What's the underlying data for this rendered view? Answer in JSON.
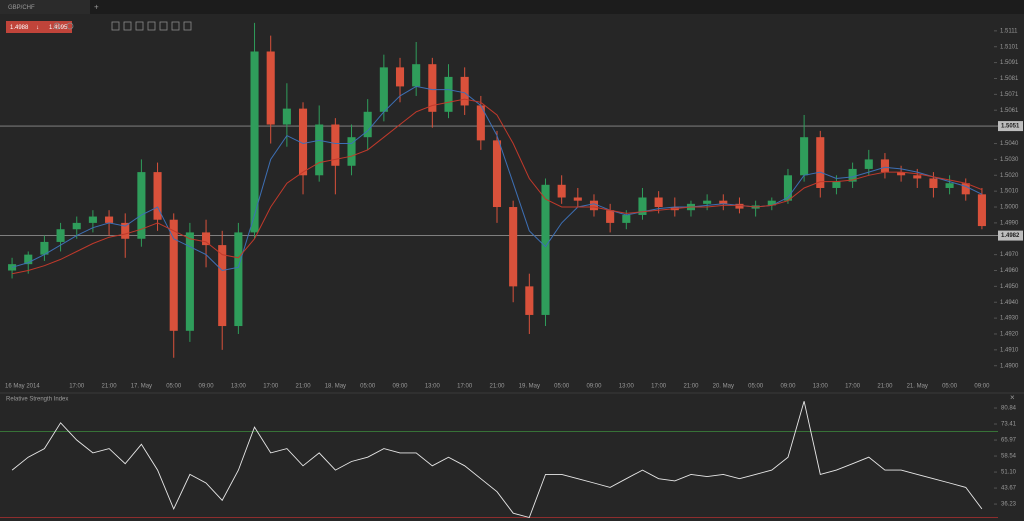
{
  "chart_data": [
    {
      "type": "candlestick",
      "title": "GBP/CHF",
      "quote": {
        "bid": 1.4988,
        "ask": 1.4995
      },
      "categories": [
        "16 May 2014",
        null,
        null,
        null,
        "17:00",
        null,
        "21:00",
        null,
        "17. May",
        null,
        "05:00",
        null,
        "09:00",
        null,
        "13:00",
        null,
        "17:00",
        null,
        "21:00",
        null,
        "18. May",
        null,
        "05:00",
        null,
        "09:00",
        null,
        "13:00",
        null,
        "17:00",
        null,
        "21:00",
        null,
        "19. May",
        null,
        "05:00",
        null,
        "09:00",
        null,
        "13:00",
        null,
        "17:00",
        null,
        "21:00",
        null,
        "20. May",
        null,
        "05:00",
        null,
        "09:00",
        null,
        "13:00",
        null,
        "17:00",
        null,
        "21:00",
        null,
        "21. May",
        null,
        "05:00",
        null,
        "09:00"
      ],
      "open": [
        1.496,
        1.4964,
        1.497,
        1.4978,
        1.4986,
        1.499,
        1.4994,
        1.499,
        1.498,
        1.5022,
        1.4992,
        1.4922,
        1.4984,
        1.4976,
        1.4925,
        1.4984,
        1.5098,
        1.5052,
        1.5062,
        1.502,
        1.5052,
        1.5026,
        1.5044,
        1.506,
        1.5088,
        1.5076,
        1.509,
        1.506,
        1.5082,
        1.5064,
        1.5042,
        1.5,
        1.495,
        1.4932,
        1.5014,
        1.5006,
        1.5004,
        1.4998,
        1.499,
        1.4995,
        1.5006,
        1.5,
        1.4998,
        1.5002,
        1.5004,
        1.5002,
        1.4999,
        1.5001,
        1.5004,
        1.502,
        1.5044,
        1.5012,
        1.5016,
        1.5024,
        1.503,
        1.5022,
        1.502,
        1.5018,
        1.5012,
        1.5015,
        1.5008
      ],
      "high": [
        1.4968,
        1.4972,
        1.4982,
        1.499,
        1.4994,
        1.4998,
        1.4998,
        1.4996,
        1.503,
        1.5028,
        1.4996,
        1.499,
        1.4992,
        1.4985,
        1.499,
        1.5116,
        1.5108,
        1.5078,
        1.5066,
        1.5064,
        1.5056,
        1.5052,
        1.5068,
        1.5096,
        1.5094,
        1.5104,
        1.5094,
        1.509,
        1.5088,
        1.507,
        1.5048,
        1.5004,
        1.4958,
        1.5018,
        1.502,
        1.5012,
        1.5008,
        1.5002,
        1.4998,
        1.5012,
        1.501,
        1.5006,
        1.5004,
        1.5008,
        1.5008,
        1.5006,
        1.5004,
        1.5006,
        1.5024,
        1.5058,
        1.5048,
        1.502,
        1.5028,
        1.5036,
        1.5034,
        1.5026,
        1.5024,
        1.5022,
        1.502,
        1.5018,
        1.5012
      ],
      "low": [
        1.4955,
        1.4958,
        1.4966,
        1.4972,
        1.498,
        1.4984,
        1.4982,
        1.4968,
        1.4975,
        1.4985,
        1.4905,
        1.4915,
        1.4962,
        1.491,
        1.492,
        1.498,
        1.504,
        1.5038,
        1.5008,
        1.5016,
        1.5008,
        1.502,
        1.5036,
        1.5054,
        1.5066,
        1.507,
        1.505,
        1.5056,
        1.5058,
        1.5036,
        1.499,
        1.494,
        1.492,
        1.4925,
        1.5002,
        1.5,
        1.4994,
        1.4984,
        1.4986,
        1.4992,
        1.4996,
        1.4994,
        1.4994,
        1.4998,
        1.4998,
        1.4996,
        1.4994,
        1.4998,
        1.5002,
        1.5016,
        1.5006,
        1.5008,
        1.5012,
        1.502,
        1.5018,
        1.5016,
        1.5012,
        1.5006,
        1.5008,
        1.5004,
        1.4986
      ],
      "close": [
        1.4964,
        1.497,
        1.4978,
        1.4986,
        1.499,
        1.4994,
        1.499,
        1.498,
        1.5022,
        1.4992,
        1.4922,
        1.4984,
        1.4976,
        1.4925,
        1.4984,
        1.5098,
        1.5052,
        1.5062,
        1.502,
        1.5052,
        1.5026,
        1.5044,
        1.506,
        1.5088,
        1.5076,
        1.509,
        1.506,
        1.5082,
        1.5064,
        1.5042,
        1.5,
        1.495,
        1.4932,
        1.5014,
        1.5006,
        1.5004,
        1.4998,
        1.499,
        1.4995,
        1.5006,
        1.5,
        1.4998,
        1.5002,
        1.5004,
        1.5002,
        1.4999,
        1.5001,
        1.5004,
        1.502,
        1.5044,
        1.5012,
        1.5016,
        1.5024,
        1.503,
        1.5022,
        1.502,
        1.5018,
        1.5012,
        1.5015,
        1.5008,
        1.4988
      ],
      "up_color": "#2f9d5b",
      "down_color": "#d9513b",
      "series": [
        {
          "color": "#3d6fb4",
          "values": [
            1.4962,
            1.4965,
            1.497,
            1.4976,
            1.4982,
            1.4987,
            1.499,
            1.4988,
            1.4995,
            1.5,
            1.498,
            1.4975,
            1.497,
            1.496,
            1.4962,
            1.4995,
            1.503,
            1.5045,
            1.504,
            1.5042,
            1.504,
            1.504,
            1.5048,
            1.506,
            1.507,
            1.5076,
            1.5074,
            1.5074,
            1.5072,
            1.5064,
            1.5045,
            1.5015,
            1.4985,
            1.4975,
            1.499,
            1.5,
            1.5002,
            1.4998,
            1.4995,
            1.4997,
            1.4999,
            1.5,
            1.5,
            1.5001,
            1.5002,
            1.5001,
            1.5,
            1.5001,
            1.5006,
            1.502,
            1.5022,
            1.5018,
            1.5019,
            1.5022,
            1.5025,
            1.5024,
            1.5022,
            1.5019,
            1.5016,
            1.5013,
            1.5008
          ]
        },
        {
          "color": "#c0392b",
          "values": [
            1.4958,
            1.496,
            1.4963,
            1.4967,
            1.4972,
            1.4977,
            1.4981,
            1.4983,
            1.4986,
            1.499,
            1.4985,
            1.498,
            1.4978,
            1.497,
            1.4968,
            1.498,
            1.5,
            1.5015,
            1.5022,
            1.5028,
            1.503,
            1.5032,
            1.5036,
            1.5044,
            1.5052,
            1.506,
            1.5064,
            1.5066,
            1.5068,
            1.5066,
            1.5058,
            1.504,
            1.5018,
            1.5005,
            1.5,
            1.5,
            1.5,
            1.4998,
            1.4996,
            1.4997,
            1.4998,
            1.4999,
            1.5,
            1.5,
            1.5001,
            1.5001,
            1.5,
            1.5001,
            1.5004,
            1.5012,
            1.5016,
            1.5016,
            1.5017,
            1.502,
            1.5022,
            1.5022,
            1.5021,
            1.5019,
            1.5017,
            1.5015,
            1.5011
          ]
        }
      ],
      "levels": [
        1.5051,
        1.4982
      ],
      "ylim": [
        1.4891,
        1.5121
      ],
      "yticks": [
        1.5111,
        1.5101,
        1.5091,
        1.5081,
        1.5071,
        1.5061,
        {
          "value": 1.504,
          "label": "1.5040"
        },
        {
          "value": 1.503,
          "label": "1.5030"
        },
        {
          "value": 1.502,
          "label": "1.5020"
        },
        {
          "value": 1.501,
          "label": "1.5010"
        },
        {
          "value": 1.5,
          "label": "1.5000"
        },
        {
          "value": 1.499,
          "label": "1.4990"
        },
        {
          "value": 1.497,
          "label": "1.4970"
        },
        {
          "value": 1.496,
          "label": "1.4960"
        },
        {
          "value": 1.495,
          "label": "1.4950"
        },
        {
          "value": 1.494,
          "label": "1.4940"
        },
        {
          "value": 1.493,
          "label": "1.4930"
        },
        {
          "value": 1.492,
          "label": "1.4920"
        },
        {
          "value": 1.491,
          "label": "1.4910"
        },
        {
          "value": 1.49,
          "label": "1.4900"
        }
      ]
    },
    {
      "type": "line",
      "title": "Relative Strength Index",
      "color": "#e8e8e8",
      "values": [
        52,
        58,
        62,
        74,
        66,
        60,
        62,
        55,
        64,
        52,
        34,
        50,
        46,
        38,
        52,
        72,
        60,
        62,
        54,
        60,
        52,
        56,
        58,
        62,
        60,
        60,
        54,
        58,
        54,
        48,
        42,
        32,
        30,
        50,
        50,
        48,
        46,
        44,
        48,
        52,
        48,
        47,
        50,
        49,
        50,
        48,
        50,
        52,
        58,
        84,
        50,
        52,
        55,
        58,
        52,
        52,
        50,
        48,
        46,
        44,
        34
      ],
      "levels": [
        70,
        30
      ],
      "level_colors": [
        "#3d8c3d",
        "#b03030"
      ],
      "ylim": [
        29.3,
        85.5
      ],
      "yticks": [
        80.84,
        73.41,
        65.97,
        58.54,
        {
          "value": 51.1,
          "label": "51.10"
        },
        43.67,
        36.23
      ]
    }
  ]
}
